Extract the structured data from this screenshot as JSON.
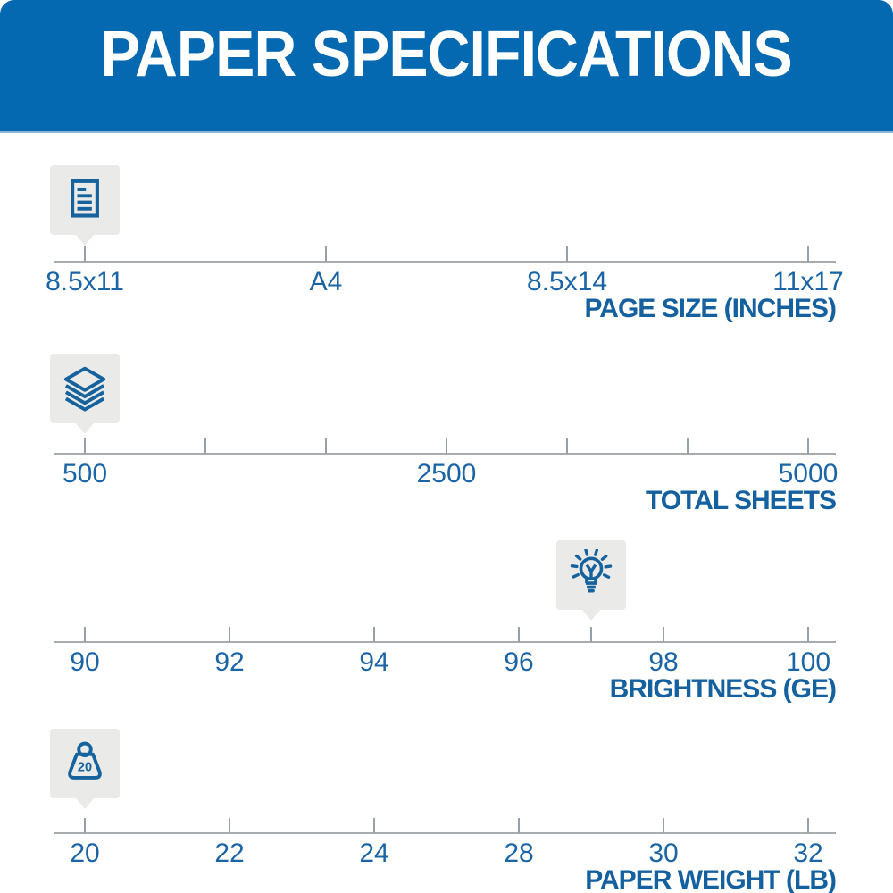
{
  "header": {
    "title": "PAPER SPECIFICATIONS"
  },
  "colors": {
    "page_bg": "#ffffff",
    "header_bg": "#0569b1",
    "header_text": "#ffffff",
    "icon_blue": "#15629c",
    "tick_label_blue": "#1b64a6",
    "axis_title_blue": "#15609f",
    "axis_line_gray": "#a9acae",
    "tick_gray": "#97a0a8",
    "badge_gray": "#eaeae8"
  },
  "chart_data": [
    {
      "type": "scale",
      "name": "page-size",
      "title": "PAGE SIZE (INCHES)",
      "icon": "document-icon",
      "ticks": [
        {
          "pos": 0,
          "label": "8.5x11"
        },
        {
          "pos": 0.3333,
          "label": "A4"
        },
        {
          "pos": 0.6667,
          "label": "8.5x14"
        },
        {
          "pos": 1,
          "label": "11x17"
        }
      ],
      "marker": {
        "pos": 0,
        "value": "8.5x11"
      }
    },
    {
      "type": "scale",
      "name": "total-sheets",
      "title": "TOTAL SHEETS",
      "icon": "sheets-icon",
      "ticks": [
        {
          "pos": 0,
          "label": "500"
        },
        {
          "pos": 0.1667,
          "label": ""
        },
        {
          "pos": 0.3333,
          "label": ""
        },
        {
          "pos": 0.5,
          "label": "2500"
        },
        {
          "pos": 0.6667,
          "label": ""
        },
        {
          "pos": 0.8333,
          "label": ""
        },
        {
          "pos": 1,
          "label": "5000"
        }
      ],
      "marker": {
        "pos": 0,
        "value": "500"
      }
    },
    {
      "type": "scale",
      "name": "brightness",
      "title": "BRIGHTNESS (GE)",
      "icon": "lightbulb-icon",
      "ticks": [
        {
          "pos": 0,
          "label": "90"
        },
        {
          "pos": 0.2,
          "label": "92"
        },
        {
          "pos": 0.4,
          "label": "94"
        },
        {
          "pos": 0.6,
          "label": "96"
        },
        {
          "pos": 0.8,
          "label": "98"
        },
        {
          "pos": 1,
          "label": "100"
        }
      ],
      "marker": {
        "pos": 0.7,
        "value": "97"
      }
    },
    {
      "type": "scale",
      "name": "paper-weight",
      "title": "PAPER WEIGHT (LB)",
      "icon": "weight-icon",
      "icon_text": "20",
      "ticks": [
        {
          "pos": 0,
          "label": "20"
        },
        {
          "pos": 0.2,
          "label": "22"
        },
        {
          "pos": 0.4,
          "label": "24"
        },
        {
          "pos": 0.6,
          "label": "28"
        },
        {
          "pos": 0.8,
          "label": "30"
        },
        {
          "pos": 1,
          "label": "32"
        }
      ],
      "marker": {
        "pos": 0,
        "value": "20"
      }
    }
  ]
}
